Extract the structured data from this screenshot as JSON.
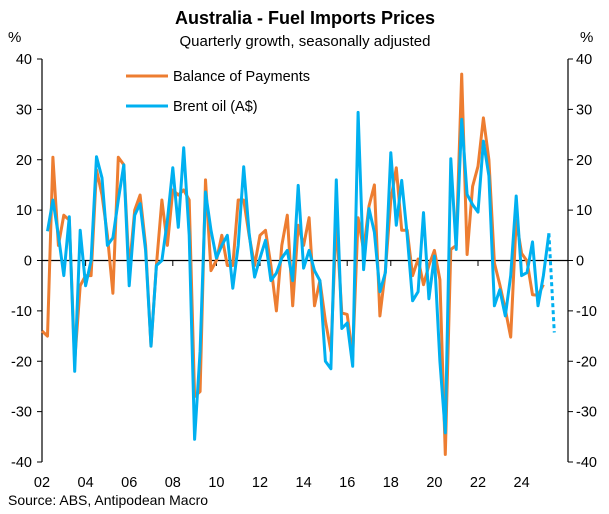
{
  "chart_data": {
    "type": "line",
    "title": "Australia - Fuel Imports Prices",
    "subtitle": "Quarterly growth, seasonally adjusted",
    "ylabel_left": "%",
    "ylabel_right": "%",
    "ylim": [
      -40,
      40
    ],
    "yticks": [
      40,
      30,
      20,
      10,
      0,
      -10,
      -20,
      -30,
      -40
    ],
    "xtick_labels": [
      "02",
      "04",
      "06",
      "08",
      "10",
      "12",
      "14",
      "16",
      "18",
      "20",
      "22",
      "24"
    ],
    "x_start": "2002 Q1",
    "frequency": "quarterly",
    "grid": false,
    "legend_position": "top-left",
    "source": "Source: ABS, Antipodean Macro",
    "series": [
      {
        "name": "Balance of Payments",
        "color": "#ED7D31",
        "start_index": 0,
        "values": [
          -14,
          -15,
          20.5,
          3,
          9,
          8,
          -20,
          -5,
          -3,
          -3,
          18,
          13,
          5,
          -6.5,
          20.5,
          19,
          -2,
          10,
          13,
          3,
          -17,
          -1,
          12,
          3,
          14,
          13,
          14,
          12,
          -27,
          -26,
          16,
          -2,
          0,
          5,
          -1,
          -1,
          12,
          12,
          5,
          -1,
          5,
          6,
          -1,
          -10,
          3,
          9,
          -9,
          7,
          3,
          8.5,
          -9,
          -4,
          -12,
          -18,
          8,
          -10.4,
          -10.7,
          -19,
          8.5,
          2,
          10.8,
          15,
          -11,
          -2,
          12,
          18.4,
          6,
          6,
          -3,
          0.3,
          -4.8,
          -1,
          2,
          -3.8,
          -38.5,
          2.2,
          3,
          37,
          1.2,
          14.7,
          18.7,
          28.3,
          20,
          -0.5,
          -4.8,
          -9.7,
          -15.2,
          8,
          1.4,
          -0.1,
          -6.8,
          -6.9,
          -4.8
        ]
      },
      {
        "name": "Brent oil (A$)",
        "color": "#00B0F0",
        "start_index": 1,
        "values": [
          5.8,
          12,
          5,
          -3,
          8.7,
          -22,
          6,
          -5,
          0,
          20.6,
          16.4,
          3,
          4.5,
          12,
          19,
          -5,
          9,
          11.3,
          2,
          -17,
          -1,
          0,
          8,
          18.4,
          6.6,
          22.4,
          5,
          -35.5,
          -18,
          13.6,
          6,
          0.5,
          3,
          5,
          -5.5,
          3,
          18.6,
          5.5,
          -3.3,
          0.5,
          4,
          -4,
          -2.5,
          0.5,
          2,
          -4,
          14.9,
          -1.5,
          2,
          -2,
          -4,
          -20,
          -21.5,
          16,
          -13.5,
          -12.4,
          -21,
          29.4,
          -1.8,
          10.3,
          5.6,
          -6.2,
          -2.4,
          21.4,
          7,
          15.9,
          5,
          -8,
          -6.2,
          9.5,
          -7.6,
          0.9,
          -20,
          -34.2,
          20.2,
          2.2,
          28,
          13.1,
          11.1,
          9.6,
          23.7,
          16.8,
          -9,
          -5.8,
          -11,
          -3,
          12.8,
          -3,
          -2.4,
          3.7,
          -9,
          -3,
          5.4
        ],
        "projection_values": [
          5.4,
          -14.3
        ]
      }
    ]
  }
}
